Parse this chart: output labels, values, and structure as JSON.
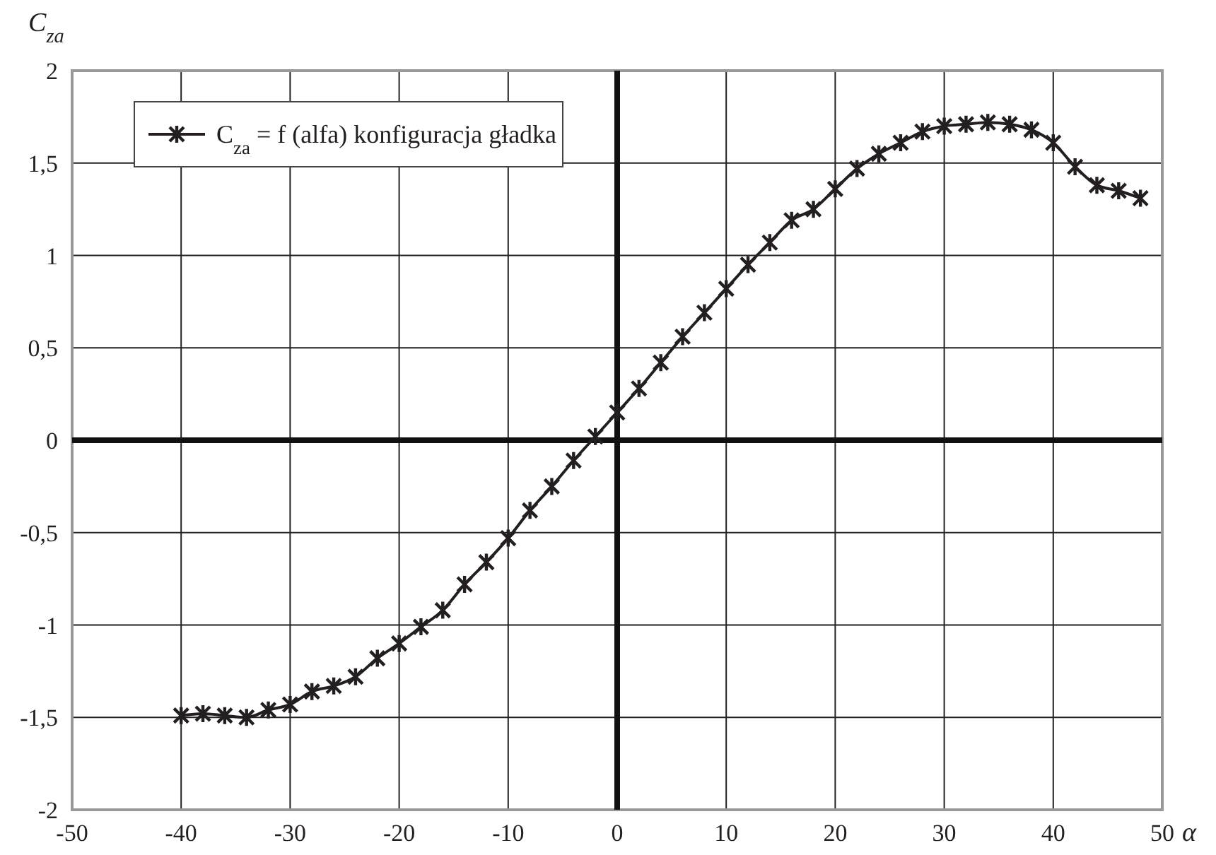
{
  "chart_data": {
    "type": "line",
    "xlabel": "α",
    "ylabel": "C$_{za}$",
    "x": [
      -40,
      -38,
      -36,
      -34,
      -32,
      -30,
      -28,
      -26,
      -24,
      -22,
      -20,
      -18,
      -16,
      -14,
      -12,
      -10,
      -8,
      -6,
      -4,
      -2,
      0,
      2,
      4,
      6,
      8,
      10,
      12,
      14,
      16,
      18,
      20,
      22,
      24,
      26,
      28,
      30,
      32,
      34,
      36,
      38,
      40,
      42,
      44,
      46,
      48
    ],
    "series": [
      {
        "name": "C$_{za}$ = f (alfa) konfiguracja gładka",
        "color": "#231f20",
        "values": [
          -1.49,
          -1.48,
          -1.49,
          -1.5,
          -1.46,
          -1.43,
          -1.36,
          -1.33,
          -1.28,
          -1.18,
          -1.1,
          -1.01,
          -0.92,
          -0.78,
          -0.66,
          -0.53,
          -0.38,
          -0.25,
          -0.11,
          0.02,
          0.15,
          0.28,
          0.42,
          0.56,
          0.69,
          0.82,
          0.95,
          1.07,
          1.19,
          1.25,
          1.36,
          1.47,
          1.55,
          1.61,
          1.67,
          1.7,
          1.71,
          1.72,
          1.71,
          1.68,
          1.61,
          1.48,
          1.38,
          1.35,
          1.31
        ]
      }
    ],
    "xlim": [
      -50,
      50
    ],
    "xticks": [
      -50,
      -40,
      -30,
      -20,
      -10,
      0,
      10,
      20,
      30,
      40,
      50
    ],
    "ylim": [
      -2,
      2
    ],
    "yticks": [
      -2,
      {
        "value": -1.5,
        "label": "-1,5"
      },
      -1,
      {
        "value": -0.5,
        "label": "-0,5"
      },
      0,
      {
        "value": 0.5,
        "label": "0,5"
      },
      1,
      {
        "value": 1.5,
        "label": "1,5"
      },
      2
    ],
    "grid": true,
    "legend": "top left",
    "marker": "cross",
    "line_style": "solid"
  }
}
